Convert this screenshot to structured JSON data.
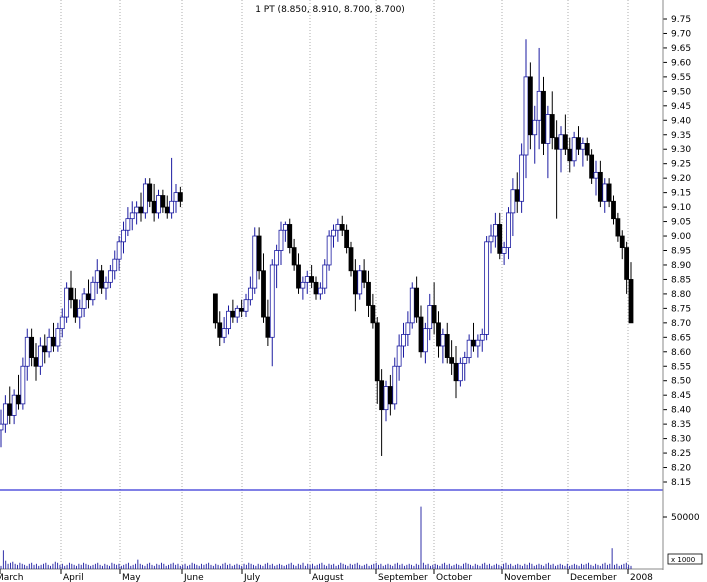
{
  "chart_data": {
    "type": "ohlc",
    "title": "1 PT (8.850, 8.910, 8.700, 8.700)",
    "x_labels": [
      "March",
      "April",
      "May",
      "June",
      "July",
      "August",
      "September",
      "October",
      "November",
      "December",
      "2008"
    ],
    "y_ticks": [
      "9.75",
      "9.70",
      "9.65",
      "9.60",
      "9.55",
      "9.50",
      "9.45",
      "9.40",
      "9.35",
      "9.30",
      "9.25",
      "9.20",
      "9.15",
      "9.10",
      "9.05",
      "9.00",
      "8.95",
      "8.90",
      "8.85",
      "8.80",
      "8.75",
      "8.70",
      "8.65",
      "8.60",
      "8.55",
      "8.50",
      "8.45",
      "8.40",
      "8.35",
      "8.30",
      "8.25",
      "8.20",
      "8.15"
    ],
    "ylim": [
      8.12,
      9.78
    ],
    "grid": "vertical dotted at month boundaries",
    "volume": {
      "tick_label": "50000",
      "unit_label": "x 1000",
      "values": [
        3000,
        18000,
        8000,
        5000,
        6000,
        7000,
        5000,
        4000,
        6000,
        5000,
        4000,
        3000,
        5000,
        6000,
        4000,
        5000,
        3000,
        4000,
        5000,
        6000,
        4000,
        3000,
        5000,
        7000,
        6000,
        4000,
        5000,
        3000,
        4000,
        6000,
        5000,
        4000,
        3000,
        5000,
        4000,
        6000,
        5000,
        4000,
        3000,
        4000,
        5000,
        6000,
        4000,
        3000,
        5000,
        4000,
        3000,
        6000,
        5000,
        4000,
        5000,
        3000,
        4000,
        5000,
        6000,
        3000,
        4000,
        5000,
        9000,
        5000,
        4000,
        3000,
        5000,
        6000,
        4000,
        3000,
        5000,
        4000,
        6000,
        5000,
        3000,
        4000,
        5000,
        6000,
        4000,
        5000,
        3000,
        4000,
        5000,
        3000,
        4000,
        6000,
        5000,
        4000,
        3000,
        5000,
        4000,
        5000,
        6000,
        4000,
        3000,
        5000,
        4000,
        3000,
        5000,
        6000,
        4000,
        5000,
        3000,
        4000,
        5000,
        4000,
        3000,
        5000,
        4000,
        6000,
        5000,
        4000,
        3000,
        5000,
        4000,
        3000,
        5000,
        6000,
        4000,
        5000,
        3000,
        4000,
        5000,
        4000,
        3000,
        4000,
        5000,
        6000,
        4000,
        3000,
        5000,
        4000,
        6000,
        3000,
        5000,
        4000,
        5000,
        3000,
        4000,
        5000,
        6000,
        4000,
        3000,
        5000,
        4000,
        5000,
        3000,
        4000,
        6000,
        5000,
        4000,
        3000,
        5000,
        4000,
        5000,
        6000,
        4000,
        3000,
        4000,
        5000,
        3000,
        4000,
        5000,
        6000,
        4000,
        5000,
        3000,
        4000,
        5000,
        4000,
        3000,
        5000,
        6000,
        4000,
        5000,
        3000,
        4000,
        5000,
        4000,
        3000,
        5000,
        4000,
        60000,
        6000,
        4000,
        5000,
        3000,
        4000,
        5000,
        4000,
        3000,
        5000,
        6000,
        4000,
        5000,
        3000,
        4000,
        5000,
        4000,
        3000,
        5000,
        6000,
        5000,
        4000,
        3000,
        5000,
        4000,
        3000,
        5000,
        6000,
        4000,
        5000,
        3000,
        4000,
        5000,
        4000,
        3000,
        5000,
        6000,
        4000,
        5000,
        3000,
        4000,
        5000,
        4000,
        3000,
        5000,
        4000,
        6000,
        5000,
        3000,
        4000,
        5000,
        4000,
        3000,
        5000,
        6000,
        4000,
        5000,
        3000,
        4000,
        5000,
        4000,
        3000,
        5000,
        3000,
        4000,
        5000,
        4000,
        3000,
        5000,
        4000,
        5000,
        6000,
        4000,
        3000,
        5000,
        4000,
        3000,
        5000,
        6000,
        4000,
        5000,
        20000,
        4000,
        5000,
        3000,
        4000,
        5000,
        6000,
        4000,
        3000
      ]
    },
    "bars": [
      [
        8.33,
        8.4,
        8.27,
        8.35
      ],
      [
        8.35,
        8.45,
        8.32,
        8.42
      ],
      [
        8.42,
        8.48,
        8.35,
        8.38
      ],
      [
        8.38,
        8.47,
        8.35,
        8.45
      ],
      [
        8.45,
        8.52,
        8.4,
        8.42
      ],
      [
        8.42,
        8.58,
        8.4,
        8.55
      ],
      [
        8.55,
        8.68,
        8.5,
        8.65
      ],
      [
        8.65,
        8.68,
        8.55,
        8.58
      ],
      [
        8.58,
        8.63,
        8.5,
        8.55
      ],
      [
        8.55,
        8.65,
        8.52,
        8.62
      ],
      [
        8.62,
        8.66,
        8.56,
        8.6
      ],
      [
        8.6,
        8.68,
        8.58,
        8.65
      ],
      [
        8.65,
        8.7,
        8.6,
        8.62
      ],
      [
        8.62,
        8.7,
        8.6,
        8.68
      ],
      [
        8.68,
        8.75,
        8.65,
        8.72
      ],
      [
        8.72,
        8.84,
        8.7,
        8.82
      ],
      [
        8.82,
        8.88,
        8.75,
        8.78
      ],
      [
        8.78,
        8.82,
        8.7,
        8.72
      ],
      [
        8.72,
        8.78,
        8.68,
        8.75
      ],
      [
        8.75,
        8.82,
        8.72,
        8.8
      ],
      [
        8.8,
        8.85,
        8.75,
        8.78
      ],
      [
        8.78,
        8.86,
        8.76,
        8.84
      ],
      [
        8.84,
        8.92,
        8.8,
        8.88
      ],
      [
        8.88,
        8.9,
        8.8,
        8.82
      ],
      [
        8.82,
        8.86,
        8.78,
        8.84
      ],
      [
        8.84,
        8.9,
        8.82,
        8.88
      ],
      [
        8.88,
        8.95,
        8.85,
        8.92
      ],
      [
        8.92,
        9.0,
        8.88,
        8.98
      ],
      [
        8.98,
        9.05,
        8.94,
        9.02
      ],
      [
        9.02,
        9.1,
        9.0,
        9.06
      ],
      [
        9.06,
        9.12,
        9.02,
        9.08
      ],
      [
        9.08,
        9.12,
        9.04,
        9.1
      ],
      [
        9.1,
        9.15,
        9.05,
        9.08
      ],
      [
        9.08,
        9.2,
        9.06,
        9.18
      ],
      [
        9.18,
        9.2,
        9.1,
        9.12
      ],
      [
        9.12,
        9.18,
        9.05,
        9.08
      ],
      [
        9.08,
        9.16,
        9.06,
        9.14
      ],
      [
        9.14,
        9.16,
        9.08,
        9.1
      ],
      [
        9.1,
        9.14,
        9.06,
        9.08
      ],
      [
        9.08,
        9.27,
        9.06,
        9.12
      ],
      [
        9.12,
        9.18,
        9.08,
        9.15
      ],
      [
        9.15,
        9.17,
        9.1,
        9.12
      ],
      null,
      null,
      null,
      null,
      null,
      null,
      null,
      [
        8.8,
        8.8,
        8.68,
        8.7
      ],
      [
        8.7,
        8.74,
        8.62,
        8.65
      ],
      [
        8.65,
        8.72,
        8.63,
        8.68
      ],
      [
        8.68,
        8.76,
        8.66,
        8.74
      ],
      [
        8.74,
        8.78,
        8.7,
        8.72
      ],
      [
        8.72,
        8.76,
        8.7,
        8.75
      ],
      [
        8.75,
        8.78,
        8.72,
        8.74
      ],
      [
        8.74,
        8.8,
        8.72,
        8.78
      ],
      [
        8.78,
        8.86,
        8.76,
        8.82
      ],
      [
        8.82,
        9.03,
        8.8,
        9.0
      ],
      [
        9.0,
        9.03,
        8.85,
        8.88
      ],
      [
        8.88,
        8.94,
        8.7,
        8.72
      ],
      [
        8.72,
        8.78,
        8.62,
        8.65
      ],
      [
        8.65,
        8.92,
        8.55,
        8.9
      ],
      [
        8.9,
        8.97,
        8.82,
        8.95
      ],
      [
        8.95,
        9.05,
        8.9,
        9.02
      ],
      [
        9.02,
        9.05,
        8.98,
        9.04
      ],
      [
        9.04,
        9.06,
        8.94,
        8.96
      ],
      [
        8.96,
        8.99,
        8.88,
        8.9
      ],
      [
        8.9,
        8.94,
        8.8,
        8.82
      ],
      [
        8.82,
        8.86,
        8.78,
        8.84
      ],
      [
        8.84,
        8.88,
        8.8,
        8.86
      ],
      [
        8.86,
        8.9,
        8.82,
        8.84
      ],
      [
        8.84,
        8.86,
        8.78,
        8.8
      ],
      [
        8.8,
        8.84,
        8.78,
        8.82
      ],
      [
        8.82,
        8.92,
        8.8,
        8.9
      ],
      [
        8.9,
        9.02,
        8.88,
        9.0
      ],
      [
        9.0,
        9.04,
        8.96,
        9.02
      ],
      [
        9.02,
        9.06,
        8.98,
        9.04
      ],
      [
        9.04,
        9.07,
        9.0,
        9.02
      ],
      [
        9.02,
        9.04,
        8.94,
        8.96
      ],
      [
        8.96,
        8.98,
        8.86,
        8.88
      ],
      [
        8.88,
        8.92,
        8.74,
        8.8
      ],
      [
        8.8,
        8.9,
        8.78,
        8.88
      ],
      [
        8.88,
        8.92,
        8.82,
        8.84
      ],
      [
        8.84,
        8.88,
        8.72,
        8.76
      ],
      [
        8.76,
        8.8,
        8.68,
        8.7
      ],
      [
        8.7,
        8.72,
        8.42,
        8.5
      ],
      [
        8.5,
        8.54,
        8.24,
        8.4
      ],
      [
        8.4,
        8.5,
        8.36,
        8.48
      ],
      [
        8.48,
        8.52,
        8.38,
        8.42
      ],
      [
        8.42,
        8.58,
        8.4,
        8.55
      ],
      [
        8.55,
        8.66,
        8.5,
        8.62
      ],
      [
        8.62,
        8.7,
        8.58,
        8.66
      ],
      [
        8.66,
        8.74,
        8.62,
        8.7
      ],
      [
        8.7,
        8.84,
        8.68,
        8.82
      ],
      [
        8.82,
        8.86,
        8.7,
        8.72
      ],
      [
        8.72,
        8.76,
        8.58,
        8.6
      ],
      [
        8.6,
        8.7,
        8.56,
        8.68
      ],
      [
        8.68,
        8.8,
        8.64,
        8.76
      ],
      [
        8.76,
        8.84,
        8.66,
        8.7
      ],
      [
        8.7,
        8.74,
        8.58,
        8.62
      ],
      [
        8.62,
        8.68,
        8.56,
        8.66
      ],
      [
        8.66,
        8.7,
        8.56,
        8.58
      ],
      [
        8.58,
        8.64,
        8.52,
        8.56
      ],
      [
        8.56,
        8.62,
        8.44,
        8.5
      ],
      [
        8.5,
        8.58,
        8.48,
        8.56
      ],
      [
        8.56,
        8.6,
        8.5,
        8.58
      ],
      [
        8.58,
        8.66,
        8.56,
        8.64
      ],
      [
        8.64,
        8.7,
        8.6,
        8.62
      ],
      [
        8.62,
        8.66,
        8.58,
        8.64
      ],
      [
        8.64,
        8.68,
        8.6,
        8.66
      ],
      [
        8.66,
        9.0,
        8.64,
        8.98
      ],
      [
        8.98,
        9.04,
        8.94,
        9.0
      ],
      [
        9.0,
        9.08,
        8.96,
        9.04
      ],
      [
        9.04,
        9.08,
        8.92,
        8.94
      ],
      [
        8.94,
        8.98,
        8.9,
        8.96
      ],
      [
        8.96,
        9.1,
        8.92,
        9.08
      ],
      [
        9.08,
        9.2,
        9.0,
        9.16
      ],
      [
        9.16,
        9.22,
        9.08,
        9.12
      ],
      [
        9.12,
        9.32,
        9.08,
        9.28
      ],
      [
        9.28,
        9.68,
        9.2,
        9.55
      ],
      [
        9.55,
        9.6,
        9.3,
        9.35
      ],
      [
        9.35,
        9.45,
        9.25,
        9.4
      ],
      [
        9.4,
        9.65,
        9.3,
        9.5
      ],
      [
        9.5,
        9.55,
        9.28,
        9.32
      ],
      [
        9.32,
        9.45,
        9.2,
        9.42
      ],
      [
        9.42,
        9.5,
        9.3,
        9.34
      ],
      [
        9.34,
        9.4,
        9.06,
        9.3
      ],
      [
        9.3,
        9.38,
        9.22,
        9.35
      ],
      [
        9.35,
        9.42,
        9.28,
        9.3
      ],
      [
        9.3,
        9.34,
        9.22,
        9.26
      ],
      [
        9.26,
        9.36,
        9.24,
        9.34
      ],
      [
        9.34,
        9.38,
        9.28,
        9.3
      ],
      [
        9.3,
        9.34,
        9.24,
        9.32
      ],
      [
        9.32,
        9.34,
        9.26,
        9.28
      ],
      [
        9.28,
        9.3,
        9.18,
        9.2
      ],
      [
        9.2,
        9.26,
        9.14,
        9.22
      ],
      [
        9.22,
        9.26,
        9.1,
        9.12
      ],
      [
        9.12,
        9.2,
        9.08,
        9.18
      ],
      [
        9.18,
        9.2,
        9.1,
        9.12
      ],
      [
        9.12,
        9.14,
        9.04,
        9.06
      ],
      [
        9.06,
        9.08,
        8.98,
        9.0
      ],
      [
        9.0,
        9.02,
        8.92,
        8.96
      ],
      [
        8.96,
        8.98,
        8.8,
        8.85
      ],
      [
        8.85,
        8.91,
        8.7,
        8.7
      ]
    ]
  }
}
